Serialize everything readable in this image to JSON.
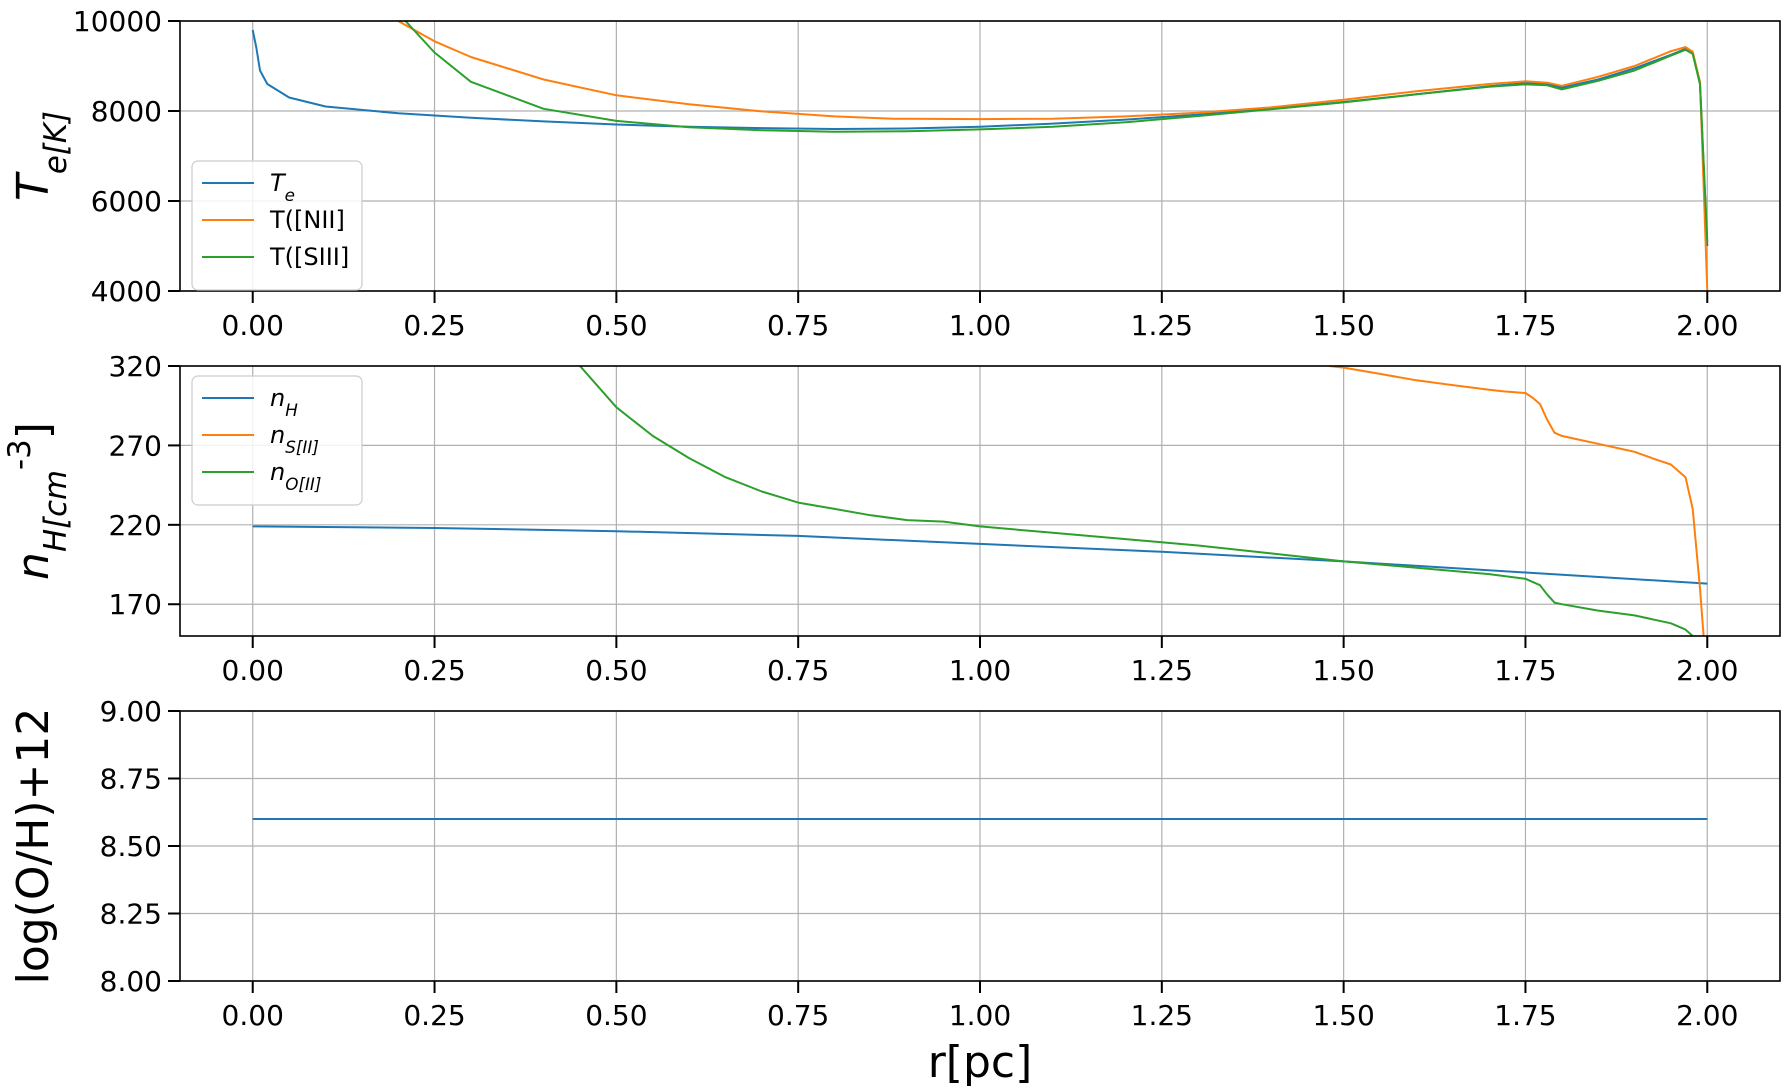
{
  "chart_data": [
    {
      "type": "line",
      "title": "",
      "xlabel": "",
      "ylabel": "T_e[K]",
      "xlim": [
        -0.1,
        2.1
      ],
      "ylim": [
        4000,
        10000
      ],
      "x_ticks": [
        "0.00",
        "0.25",
        "0.50",
        "0.75",
        "1.00",
        "1.25",
        "1.50",
        "1.75",
        "2.00"
      ],
      "y_ticks": [
        "4000",
        "6000",
        "8000",
        "10000"
      ],
      "grid": true,
      "legend_position": "center-left",
      "series": [
        {
          "name": "T_e",
          "color": "#1f77b4",
          "x": [
            0.0,
            0.005,
            0.01,
            0.02,
            0.05,
            0.1,
            0.2,
            0.3,
            0.4,
            0.5,
            0.6,
            0.7,
            0.8,
            0.9,
            1.0,
            1.1,
            1.2,
            1.3,
            1.4,
            1.5,
            1.6,
            1.7,
            1.75,
            1.78,
            1.8,
            1.85,
            1.9,
            1.95,
            1.97,
            1.98,
            1.99,
            2.0
          ],
          "y": [
            9800,
            9400,
            8900,
            8600,
            8300,
            8100,
            7950,
            7850,
            7770,
            7700,
            7650,
            7620,
            7600,
            7610,
            7650,
            7720,
            7810,
            7920,
            8050,
            8200,
            8370,
            8550,
            8620,
            8600,
            8520,
            8700,
            8950,
            9250,
            9380,
            9300,
            8600,
            5000
          ]
        },
        {
          "name": "T([NII]",
          "color": "#ff7f0e",
          "x": [
            0.2,
            0.25,
            0.3,
            0.4,
            0.5,
            0.6,
            0.7,
            0.8,
            0.88,
            0.9,
            1.0,
            1.1,
            1.2,
            1.3,
            1.4,
            1.5,
            1.6,
            1.7,
            1.75,
            1.78,
            1.8,
            1.85,
            1.9,
            1.95,
            1.97,
            1.98,
            1.99,
            2.0
          ],
          "y": [
            10000,
            9550,
            9200,
            8700,
            8350,
            8150,
            7990,
            7880,
            7830,
            7830,
            7820,
            7830,
            7880,
            7960,
            8080,
            8250,
            8440,
            8600,
            8660,
            8630,
            8560,
            8760,
            9000,
            9330,
            9420,
            9320,
            8650,
            4000
          ]
        },
        {
          "name": "T([SIII]",
          "color": "#2ca02c",
          "x": [
            0.21,
            0.25,
            0.3,
            0.4,
            0.5,
            0.6,
            0.7,
            0.8,
            0.9,
            1.0,
            1.1,
            1.2,
            1.3,
            1.4,
            1.5,
            1.6,
            1.7,
            1.75,
            1.78,
            1.8,
            1.85,
            1.9,
            1.95,
            1.97,
            1.98,
            1.99,
            2.0
          ],
          "y": [
            10000,
            9300,
            8650,
            8050,
            7780,
            7640,
            7570,
            7540,
            7550,
            7590,
            7650,
            7750,
            7890,
            8040,
            8190,
            8370,
            8540,
            8590,
            8570,
            8480,
            8670,
            8900,
            9230,
            9360,
            9270,
            8600,
            5100
          ]
        }
      ]
    },
    {
      "type": "line",
      "title": "",
      "xlabel": "",
      "ylabel": "n_H[cm^-3]",
      "xlim": [
        -0.1,
        2.1
      ],
      "ylim": [
        150,
        320
      ],
      "x_ticks": [
        "0.00",
        "0.25",
        "0.50",
        "0.75",
        "1.00",
        "1.25",
        "1.50",
        "1.75",
        "2.00"
      ],
      "y_ticks": [
        "170",
        "220",
        "270",
        "320"
      ],
      "grid": true,
      "legend_position": "top-left",
      "series": [
        {
          "name": "n_H",
          "color": "#1f77b4",
          "x": [
            0.0,
            0.25,
            0.5,
            0.75,
            1.0,
            1.25,
            1.5,
            1.75,
            2.0
          ],
          "y": [
            219,
            218,
            216,
            213,
            208,
            203,
            197,
            190,
            183
          ]
        },
        {
          "name": "n_S[II]",
          "color": "#ff7f0e",
          "x": [
            1.48,
            1.5,
            1.55,
            1.6,
            1.65,
            1.7,
            1.72,
            1.75,
            1.76,
            1.77,
            1.78,
            1.79,
            1.8,
            1.82,
            1.85,
            1.88,
            1.9,
            1.93,
            1.95,
            1.97,
            1.98,
            1.99,
            1.995
          ],
          "y": [
            320,
            319,
            315,
            311,
            308,
            305,
            304,
            303,
            300,
            296,
            286,
            278,
            276,
            274,
            271,
            268,
            266,
            261,
            258,
            250,
            230,
            180,
            150
          ]
        },
        {
          "name": "n_O[II]",
          "color": "#2ca02c",
          "x": [
            0.45,
            0.5,
            0.55,
            0.6,
            0.65,
            0.7,
            0.75,
            0.8,
            0.85,
            0.9,
            0.95,
            1.0,
            1.1,
            1.2,
            1.3,
            1.4,
            1.5,
            1.6,
            1.7,
            1.75,
            1.77,
            1.78,
            1.79,
            1.8,
            1.85,
            1.9,
            1.95,
            1.97,
            1.98
          ],
          "y": [
            320,
            294,
            276,
            262,
            250,
            241,
            234,
            230,
            226,
            223,
            222,
            219,
            215,
            211,
            207,
            202,
            197,
            193,
            189,
            186,
            182,
            176,
            171,
            170,
            166,
            163,
            158,
            154,
            150
          ]
        }
      ]
    },
    {
      "type": "line",
      "title": "",
      "xlabel": "r[pc]",
      "ylabel": "log(O/H)+12",
      "xlim": [
        -0.1,
        2.1
      ],
      "ylim": [
        8.0,
        9.0
      ],
      "x_ticks": [
        "0.00",
        "0.25",
        "0.50",
        "0.75",
        "1.00",
        "1.25",
        "1.50",
        "1.75",
        "2.00"
      ],
      "y_ticks": [
        "8.00",
        "8.25",
        "8.50",
        "8.75",
        "9.00"
      ],
      "grid": true,
      "series": [
        {
          "name": "",
          "color": "#1f77b4",
          "x": [
            0.0,
            2.0
          ],
          "y": [
            8.6,
            8.6
          ]
        }
      ]
    }
  ]
}
